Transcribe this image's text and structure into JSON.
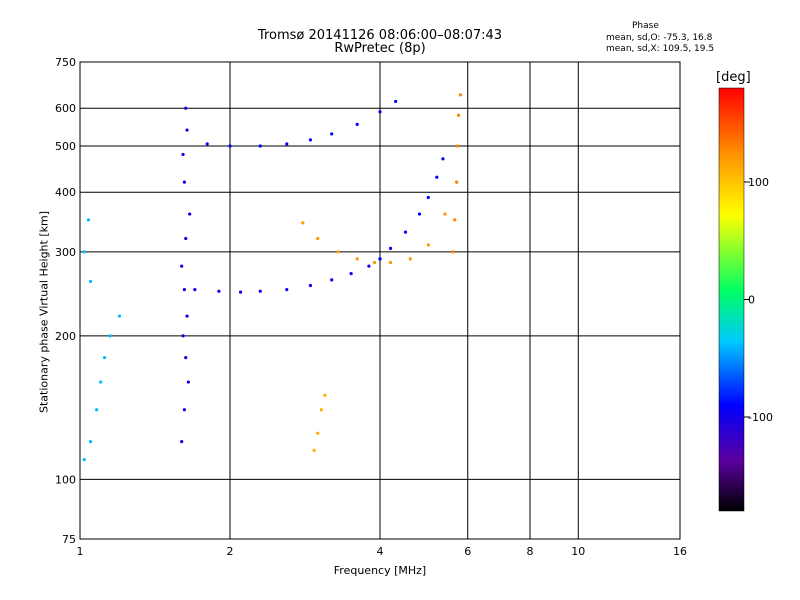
{
  "chart_data": {
    "type": "scatter",
    "title": "Tromsø 20141126 08:06:00–08:07:43",
    "subtitle": "RwPretec (8p)",
    "stats": {
      "heading": "Phase",
      "line_o": "mean, sd,O: -75.3, 16.8",
      "line_x": "mean, sd,X: 109.5, 19.5"
    },
    "xlabel": "Frequency [MHz]",
    "ylabel": "Stationary phase Virtual Height [km]",
    "x_scale": "log",
    "y_scale": "log",
    "xlim": [
      1,
      16
    ],
    "ylim": [
      75,
      750
    ],
    "x_ticks": [
      1,
      2,
      4,
      6,
      8,
      10,
      16
    ],
    "y_ticks": [
      75,
      100,
      200,
      300,
      400,
      500,
      600,
      750
    ],
    "grid": true,
    "colorbar": {
      "unit": "[deg]",
      "range": [
        -180,
        180
      ],
      "ticks": [
        -100,
        0,
        100
      ],
      "colors": [
        "#000000",
        "#5a00a0",
        "#0000ff",
        "#00c8ff",
        "#00ff64",
        "#ffff00",
        "#ff8c00",
        "#ff0000"
      ]
    },
    "series": [
      {
        "color_value": -100,
        "x": [
          1.6,
          1.62,
          1.65,
          1.63,
          1.61,
          1.64,
          1.62,
          1.6,
          1.63,
          1.66,
          1.62,
          1.61,
          1.64,
          1.63
        ],
        "y": [
          120,
          140,
          160,
          180,
          200,
          220,
          250,
          280,
          320,
          360,
          420,
          480,
          540,
          600
        ]
      },
      {
        "color_value": -95,
        "x": [
          1.7,
          1.9,
          2.1,
          2.3,
          2.6,
          2.9,
          3.2,
          3.5,
          3.8,
          4.0
        ],
        "y": [
          250,
          248,
          247,
          248,
          250,
          255,
          262,
          270,
          280,
          290
        ]
      },
      {
        "color_value": -90,
        "x": [
          1.8,
          2.0,
          2.3,
          2.6,
          2.9,
          3.2,
          3.6,
          4.0,
          4.3
        ],
        "y": [
          505,
          500,
          500,
          505,
          515,
          530,
          555,
          590,
          620
        ]
      },
      {
        "color_value": -90,
        "x": [
          4.0,
          4.2,
          4.5,
          4.8,
          5.0,
          5.2,
          5.35
        ],
        "y": [
          290,
          305,
          330,
          360,
          390,
          430,
          470
        ]
      },
      {
        "color_value": -40,
        "x": [
          1.02,
          1.05,
          1.08,
          1.1,
          1.12,
          1.15,
          1.2,
          1.05,
          1.02,
          1.04
        ],
        "y": [
          110,
          120,
          140,
          160,
          180,
          200,
          220,
          260,
          300,
          350
        ]
      },
      {
        "color_value": 120,
        "x": [
          2.8,
          3.0,
          3.3,
          3.6,
          3.9,
          4.2,
          4.6,
          5.0,
          5.4,
          5.7
        ],
        "y": [
          345,
          320,
          300,
          290,
          285,
          285,
          290,
          310,
          360,
          420
        ]
      },
      {
        "color_value": 130,
        "x": [
          5.6,
          5.65,
          5.7,
          5.72,
          5.75,
          5.8
        ],
        "y": [
          300,
          350,
          420,
          500,
          580,
          640
        ]
      },
      {
        "color_value": 110,
        "x": [
          2.95,
          3.0,
          3.05,
          3.1
        ],
        "y": [
          115,
          125,
          140,
          150
        ]
      }
    ]
  }
}
